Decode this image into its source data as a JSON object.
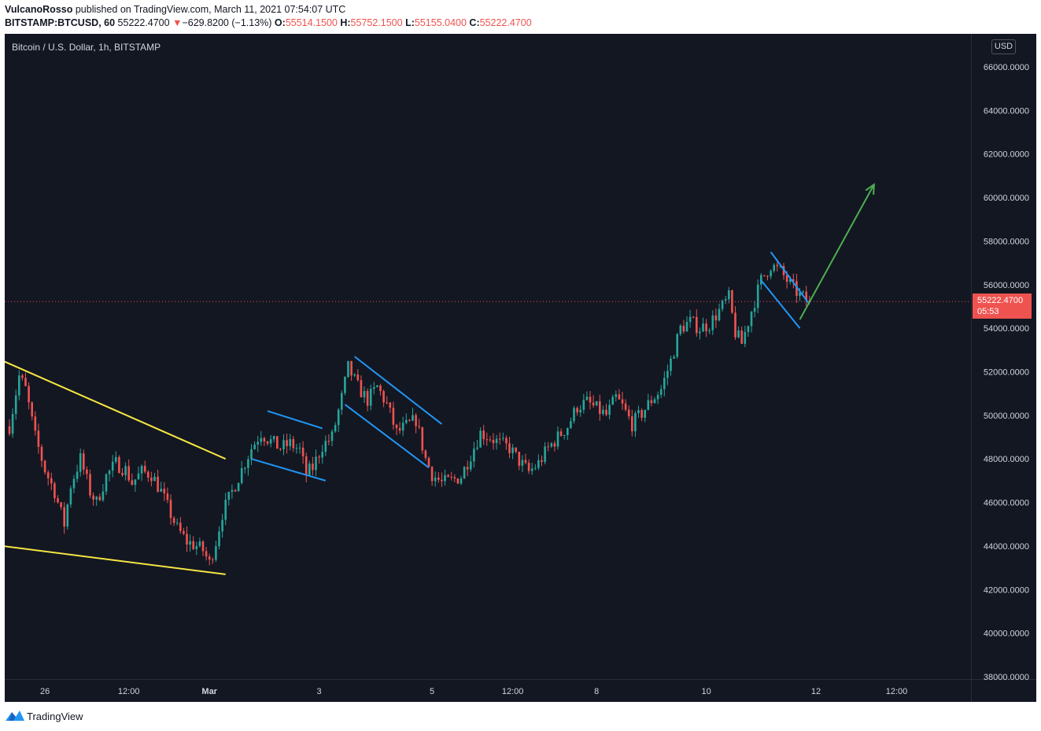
{
  "header": {
    "author": "VulcanoRosso",
    "published_text": " published on TradingView.com, March 11, 2021 07:54:07 UTC",
    "symbol": "BITSTAMP:BTCUSD, 60",
    "last_price": "55222.4700",
    "change": "−629.8200 (−1.13%)",
    "open_label": "O:",
    "open": "55514.1500",
    "high_label": "H:",
    "high": "55752.1500",
    "low_label": "L:",
    "low": "55155.0400",
    "close_label": "C:",
    "close": "55222.4700"
  },
  "chart": {
    "title": "Bitcoin / U.S. Dollar, 1h, BITSTAMP",
    "currency_button": "USD",
    "price_tag": "55222.4700",
    "countdown": "05:53"
  },
  "footer": {
    "brand": "TradingView"
  },
  "colors": {
    "background": "#131722",
    "up": "#26a69a",
    "down": "#ef5350",
    "wedge": "#f5e642",
    "channel": "#2196f3",
    "arrow": "#4caf50",
    "text": "#d1d4dc"
  },
  "chart_data": {
    "type": "candlestick",
    "title": "Bitcoin / U.S. Dollar, 1h, BITSTAMP",
    "ylim": [
      37800,
      67000
    ],
    "y_ticks": [
      "66000.0000",
      "64000.0000",
      "62000.0000",
      "60000.0000",
      "58000.0000",
      "56000.0000",
      "54000.0000",
      "52000.0000",
      "50000.0000",
      "48000.0000",
      "46000.0000",
      "44000.0000",
      "42000.0000",
      "40000.0000",
      "38000.0000"
    ],
    "x_ticks": [
      "26",
      "12:00",
      "Mar",
      "3",
      "5",
      "12:00",
      "8",
      "10",
      "12",
      "12:00"
    ],
    "last_price": 55222.47,
    "price_path": [
      [
        0,
        49500
      ],
      [
        3,
        51800
      ],
      [
        5,
        51200
      ],
      [
        8,
        49000
      ],
      [
        11,
        47500
      ],
      [
        14,
        46500
      ],
      [
        17,
        45000
      ],
      [
        19,
        46800
      ],
      [
        22,
        48000
      ],
      [
        25,
        46500
      ],
      [
        27,
        46000
      ],
      [
        30,
        47200
      ],
      [
        33,
        47800
      ],
      [
        36,
        47500
      ],
      [
        38,
        46900
      ],
      [
        41,
        47400
      ],
      [
        44,
        47300
      ],
      [
        47,
        46500
      ],
      [
        49,
        45800
      ],
      [
        52,
        44800
      ],
      [
        55,
        44200
      ],
      [
        58,
        44000
      ],
      [
        60,
        43800
      ],
      [
        62,
        43200
      ],
      [
        64,
        44200
      ],
      [
        66,
        45500
      ],
      [
        69,
        46500
      ],
      [
        72,
        47500
      ],
      [
        75,
        48500
      ],
      [
        78,
        49200
      ],
      [
        81,
        48800
      ],
      [
        84,
        48500
      ],
      [
        87,
        48700
      ],
      [
        90,
        48400
      ],
      [
        92,
        47300
      ],
      [
        94,
        47600
      ],
      [
        97,
        48600
      ],
      [
        100,
        49000
      ],
      [
        103,
        50800
      ],
      [
        105,
        52200
      ],
      [
        108,
        51300
      ],
      [
        111,
        50700
      ],
      [
        114,
        51300
      ],
      [
        117,
        50500
      ],
      [
        120,
        49200
      ],
      [
        123,
        49500
      ],
      [
        126,
        49800
      ],
      [
        129,
        48000
      ],
      [
        131,
        47300
      ],
      [
        134,
        46900
      ],
      [
        137,
        47000
      ],
      [
        140,
        47200
      ],
      [
        143,
        48200
      ],
      [
        146,
        49200
      ],
      [
        149,
        49000
      ],
      [
        152,
        48700
      ],
      [
        155,
        48500
      ],
      [
        158,
        47900
      ],
      [
        161,
        47400
      ],
      [
        164,
        47800
      ],
      [
        167,
        48500
      ],
      [
        170,
        49000
      ],
      [
        173,
        49500
      ],
      [
        176,
        50400
      ],
      [
        179,
        50600
      ],
      [
        182,
        50300
      ],
      [
        185,
        50000
      ],
      [
        188,
        50800
      ],
      [
        190,
        50400
      ],
      [
        193,
        49600
      ],
      [
        196,
        50100
      ],
      [
        199,
        50700
      ],
      [
        202,
        51200
      ],
      [
        205,
        52500
      ],
      [
        208,
        54000
      ],
      [
        211,
        54300
      ],
      [
        214,
        54000
      ],
      [
        217,
        54200
      ],
      [
        220,
        54800
      ],
      [
        223,
        55400
      ],
      [
        225,
        53800
      ],
      [
        227,
        53300
      ],
      [
        230,
        54800
      ],
      [
        233,
        56200
      ],
      [
        236,
        56900
      ],
      [
        239,
        56600
      ],
      [
        242,
        56000
      ],
      [
        245,
        55500
      ],
      [
        248,
        55222
      ]
    ],
    "annotations": [
      {
        "type": "trendline",
        "color": "yellow",
        "from": [
          -2,
          52500
        ],
        "to": [
          67,
          48000
        ]
      },
      {
        "type": "trendline",
        "color": "yellow",
        "from": [
          -2,
          44000
        ],
        "to": [
          67,
          42700
        ]
      },
      {
        "type": "channel",
        "color": "blue",
        "upper": [
          [
            80,
            50200
          ],
          [
            97,
            49400
          ]
        ],
        "lower": [
          [
            75,
            48000
          ],
          [
            98,
            47000
          ]
        ]
      },
      {
        "type": "channel",
        "color": "blue",
        "upper": [
          [
            107,
            52700
          ],
          [
            134,
            49600
          ]
        ],
        "lower": [
          [
            104,
            50500
          ],
          [
            130,
            47600
          ]
        ]
      },
      {
        "type": "channel",
        "color": "blue",
        "upper": [
          [
            236,
            57500
          ],
          [
            248,
            55100
          ]
        ],
        "lower": [
          [
            233,
            56200
          ],
          [
            245,
            54000
          ]
        ]
      },
      {
        "type": "arrow",
        "color": "green",
        "from": [
          245,
          54400
        ],
        "to": [
          268,
          60600
        ]
      }
    ]
  }
}
